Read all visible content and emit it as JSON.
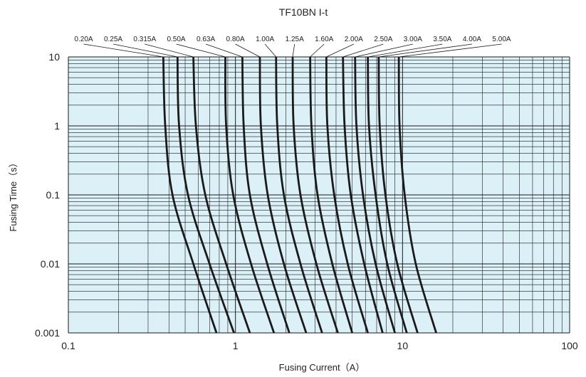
{
  "chart_data": {
    "type": "line",
    "title": "TF10BN I-t",
    "xlabel": "Fusing Current（A）",
    "ylabel": "Fusing Time（s）",
    "x_scale": "log",
    "y_scale": "log",
    "xlim": [
      0.1,
      100
    ],
    "ylim": [
      0.001,
      10
    ],
    "x_ticks": [
      "0.1",
      "1",
      "10",
      "100"
    ],
    "y_ticks": [
      "10",
      "1",
      "0.1",
      "0.01",
      "0.001"
    ],
    "grid": true,
    "legend": "labels along top edge",
    "colors": {
      "plot_background": "#dcf0f8",
      "grid": "#1a1a1a",
      "curve": "#1a1a1a"
    },
    "series": [
      {
        "name": "0.20A",
        "x": [
          0.37,
          0.38,
          0.42,
          0.56,
          0.77
        ],
        "y": [
          10,
          1,
          0.1,
          0.01,
          0.001
        ]
      },
      {
        "name": "0.25A",
        "x": [
          0.45,
          0.46,
          0.52,
          0.7,
          0.98
        ],
        "y": [
          10,
          1,
          0.1,
          0.01,
          0.001
        ]
      },
      {
        "name": "0.315A",
        "x": [
          0.56,
          0.58,
          0.66,
          0.88,
          1.22
        ],
        "y": [
          10,
          1,
          0.1,
          0.01,
          0.001
        ]
      },
      {
        "name": "0.50A",
        "x": [
          0.87,
          0.88,
          0.97,
          1.24,
          1.7
        ],
        "y": [
          10,
          1,
          0.1,
          0.01,
          0.001
        ]
      },
      {
        "name": "0.63A",
        "x": [
          1.1,
          1.12,
          1.22,
          1.55,
          2.1
        ],
        "y": [
          10,
          1,
          0.1,
          0.01,
          0.001
        ]
      },
      {
        "name": "0.80A",
        "x": [
          1.4,
          1.42,
          1.56,
          1.95,
          2.65
        ],
        "y": [
          10,
          1,
          0.1,
          0.01,
          0.001
        ]
      },
      {
        "name": "1.00A",
        "x": [
          1.75,
          1.78,
          1.95,
          2.45,
          3.3
        ],
        "y": [
          10,
          1,
          0.1,
          0.01,
          0.001
        ]
      },
      {
        "name": "1.25A",
        "x": [
          2.2,
          2.23,
          2.45,
          3.05,
          4.1
        ],
        "y": [
          10,
          1,
          0.1,
          0.01,
          0.001
        ]
      },
      {
        "name": "1.60A",
        "x": [
          2.8,
          2.85,
          3.1,
          3.8,
          5.0
        ],
        "y": [
          10,
          1,
          0.1,
          0.01,
          0.001
        ]
      },
      {
        "name": "2.00A",
        "x": [
          3.5,
          3.55,
          3.9,
          4.7,
          6.2
        ],
        "y": [
          10,
          1,
          0.1,
          0.01,
          0.001
        ]
      },
      {
        "name": "2.50A",
        "x": [
          4.4,
          4.5,
          4.9,
          5.9,
          7.6
        ],
        "y": [
          10,
          1,
          0.1,
          0.01,
          0.001
        ]
      },
      {
        "name": "3.00A",
        "x": [
          5.2,
          5.3,
          5.8,
          6.9,
          9.0
        ],
        "y": [
          10,
          1,
          0.1,
          0.01,
          0.001
        ]
      },
      {
        "name": "3.50A",
        "x": [
          6.2,
          6.3,
          6.9,
          8.1,
          10.6
        ],
        "y": [
          10,
          1,
          0.1,
          0.01,
          0.001
        ]
      },
      {
        "name": "4.00A",
        "x": [
          7.2,
          7.3,
          7.9,
          9.3,
          12.3
        ],
        "y": [
          10,
          1,
          0.1,
          0.01,
          0.001
        ]
      },
      {
        "name": "5.00A",
        "x": [
          9.5,
          9.6,
          10.3,
          12.0,
          15.9
        ],
        "y": [
          10,
          1,
          0.1,
          0.01,
          0.001
        ]
      }
    ]
  }
}
